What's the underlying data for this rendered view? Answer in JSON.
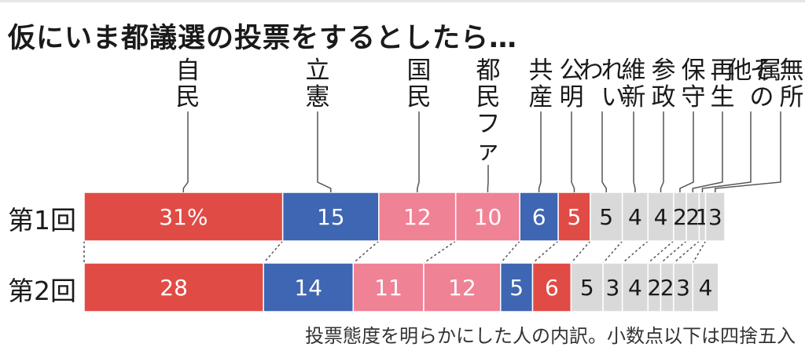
{
  "title": "仮にいま都議選の投票をするとしたら…",
  "note": "投票態度を明らかにした人の内訳。小数点以下は四捨五入",
  "chart_data": {
    "type": "bar",
    "orientation": "horizontal-stacked",
    "unit": "%",
    "categories": [
      "自民",
      "立憲",
      "国民",
      "都民ファ",
      "共産",
      "公明",
      "れいわ",
      "維新",
      "参政",
      "保守",
      "再生",
      "その他",
      "無所属"
    ],
    "colors": [
      "#e14b45",
      "#3e66b2",
      "#f08296",
      "#f08296",
      "#3e66b2",
      "#e14b45",
      "#d9d9d9",
      "#d9d9d9",
      "#d9d9d9",
      "#d9d9d9",
      "#d9d9d9",
      "#d9d9d9",
      "#d9d9d9"
    ],
    "series": [
      {
        "name": "第1回",
        "values": [
          31,
          15,
          12,
          10,
          6,
          5,
          5,
          4,
          4,
          2,
          2,
          1,
          3
        ],
        "labels": [
          "31%",
          "15",
          "12",
          "10",
          "6",
          "5",
          "5",
          "4",
          "4",
          "2",
          "2",
          "1",
          "3"
        ]
      },
      {
        "name": "第2回",
        "values": [
          28,
          14,
          11,
          12,
          5,
          6,
          5,
          3,
          4,
          2,
          2,
          3,
          4
        ],
        "labels": [
          "28",
          "14",
          "11",
          "12",
          "5",
          "6",
          "5",
          "3",
          "4",
          "2",
          "2",
          "3",
          "4"
        ]
      }
    ]
  }
}
